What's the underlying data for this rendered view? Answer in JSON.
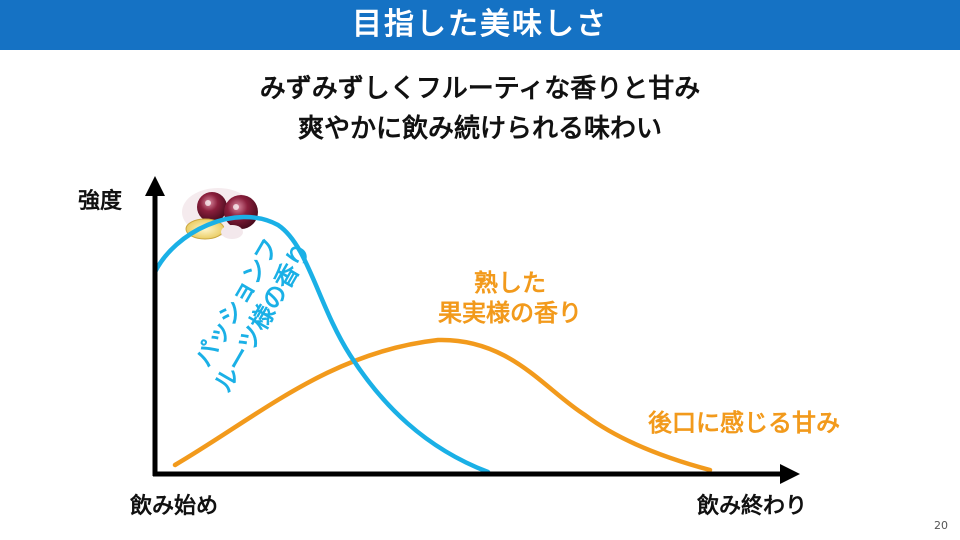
{
  "title": "目指した美味しさ",
  "subtitle_lines": [
    "みずみずしくフルーティな香りと甘み",
    "爽やかに飲み続けられる味わい"
  ],
  "axes": {
    "y_label": "強度",
    "x_start": "飲み始め",
    "x_end": "飲み終わり"
  },
  "curves": {
    "passion": {
      "label_line1": "パッションフ",
      "label_line2": "ルーツ様の香り",
      "color": "#1ab0e6"
    },
    "ripe": {
      "label_line1": "熟した",
      "label_line2": "果実様の香り",
      "color": "#f29a1c"
    },
    "sweet": {
      "label": "後口に感じる甘み",
      "color": "#f29a1c"
    }
  },
  "page_number": "20"
}
